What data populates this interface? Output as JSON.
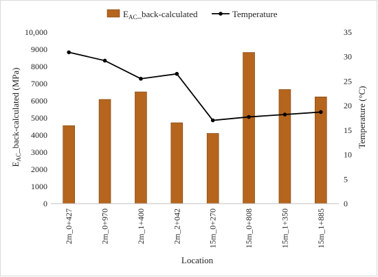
{
  "chart_data": {
    "type": "bar",
    "categories": [
      "2m_0+427",
      "2m_0+970",
      "2m_1+400",
      "2m_2+042",
      "15m_0+270",
      "15m_0+808",
      "15m_1+350",
      "15m_1+885"
    ],
    "series": [
      {
        "name": "E_AC_back-calculated",
        "kind": "bar",
        "axis": "left",
        "color": "#b5651d",
        "values": [
          4550,
          6080,
          6520,
          4720,
          4100,
          8820,
          6660,
          6230
        ]
      },
      {
        "name": "Temperature",
        "kind": "line",
        "axis": "right",
        "color": "#000000",
        "values": [
          30.9,
          29.2,
          25.5,
          26.5,
          17.0,
          17.7,
          18.2,
          18.7
        ]
      }
    ],
    "legend": {
      "bar_label_main": "E",
      "bar_label_sub": "AC",
      "bar_label_rest": "_back-calculated",
      "line_label": "Temperature",
      "position": "top"
    },
    "xlabel": "Location",
    "ylabel_left_main": "E",
    "ylabel_left_sub": "AC",
    "ylabel_left_rest": "_back-calculated  (MPa)",
    "ylabel_right": "Temperature  (°C)",
    "ylim_left": [
      0,
      10000
    ],
    "ylim_right": [
      0,
      35
    ],
    "left_ticks": [
      "0",
      "1000",
      "2000",
      "3000",
      "4000",
      "5000",
      "6000",
      "7000",
      "8000",
      "9000",
      "10,000"
    ],
    "right_ticks": [
      "0",
      "5",
      "10",
      "15",
      "20",
      "25",
      "30",
      "35"
    ],
    "grid": false
  }
}
